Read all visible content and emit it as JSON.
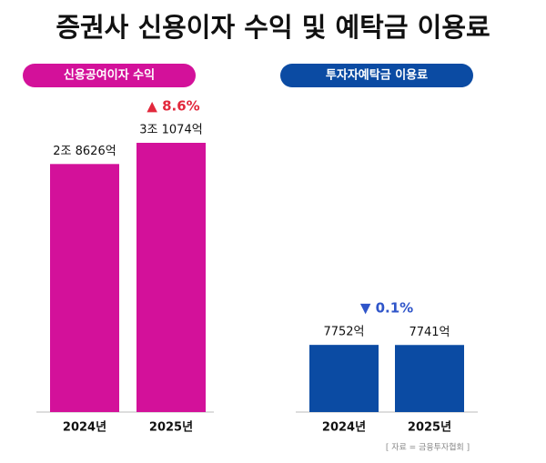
{
  "title": "증권사 신용이자 수익 및 예탁금 이용료",
  "source": "[ 자료 = 금융투자협회 ]",
  "chart_data": [
    {
      "type": "bar",
      "title": "신용공여이자 수익",
      "categories": [
        "2024년",
        "2025년"
      ],
      "values": [
        28626,
        31074
      ],
      "value_labels": [
        "2조 8626억",
        "3조 1074억"
      ],
      "color": "#d3119a",
      "annotation": "▲ 8.6%",
      "annotation_color": "#e2283c"
    },
    {
      "type": "bar",
      "title": "투자자예탁금 이용료",
      "categories": [
        "2024년",
        "2025년"
      ],
      "values": [
        7752,
        7741
      ],
      "value_labels": [
        "7752억",
        "7741억"
      ],
      "color": "#0b4ba3",
      "annotation": "▼ 0.1%",
      "annotation_color": "#2f55c9"
    }
  ]
}
